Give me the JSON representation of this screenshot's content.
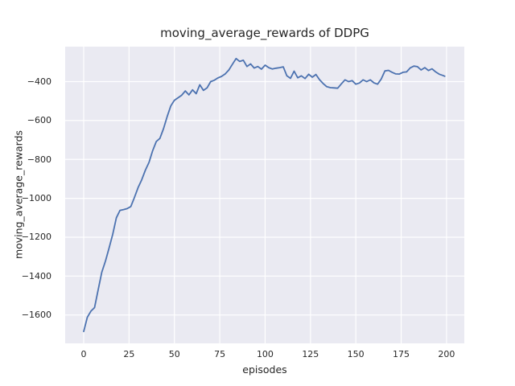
{
  "chart": {
    "title": "moving_average_rewards of DDPG",
    "xlabel": "episodes",
    "ylabel": "moving_average_rewards",
    "xlim": [
      -10.2,
      209.8
    ],
    "ylim": [
      -1746,
      -220
    ],
    "xticks": [
      0,
      25,
      50,
      75,
      100,
      125,
      150,
      175,
      200
    ],
    "xtick_labels": [
      "0",
      "25",
      "50",
      "75",
      "100",
      "125",
      "150",
      "175",
      "200"
    ],
    "yticks": [
      -400,
      -600,
      -800,
      -1000,
      -1200,
      -1400,
      -1600
    ],
    "ytick_labels": [
      "−400",
      "−600",
      "−800",
      "−1000",
      "−1200",
      "−1400",
      "−1600"
    ],
    "colors": {
      "figure_background": "#FFFFFF",
      "axes_background": "#EAEAF2",
      "grid": "#FFFFFF",
      "line": "#4C72B0",
      "text": "#262626"
    }
  },
  "chart_data": {
    "type": "line",
    "title": "moving_average_rewards of DDPG",
    "xlabel": "episodes",
    "ylabel": "moving_average_rewards",
    "xlim": [
      -10.2,
      209.8
    ],
    "ylim": [
      -1746,
      -220
    ],
    "grid": true,
    "legend": false,
    "series": [
      {
        "name": "moving_average_rewards",
        "color": "#4C72B0",
        "x": [
          0,
          2,
          4,
          6,
          8,
          10,
          12,
          14,
          16,
          18,
          20,
          22,
          24,
          26,
          28,
          30,
          32,
          34,
          36,
          38,
          40,
          42,
          44,
          46,
          48,
          50,
          52,
          54,
          56,
          58,
          60,
          62,
          64,
          66,
          68,
          70,
          72,
          74,
          76,
          78,
          80,
          82,
          84,
          86,
          88,
          90,
          92,
          94,
          96,
          98,
          100,
          102,
          104,
          106,
          108,
          110,
          112,
          114,
          116,
          118,
          120,
          122,
          124,
          126,
          128,
          130,
          132,
          134,
          136,
          138,
          140,
          142,
          144,
          146,
          148,
          150,
          152,
          154,
          156,
          158,
          160,
          162,
          164,
          166,
          168,
          170,
          172,
          174,
          176,
          178,
          180,
          182,
          184,
          186,
          188,
          190,
          192,
          194,
          196,
          198,
          199
        ],
        "y": [
          -1685,
          -1612,
          -1580,
          -1562,
          -1470,
          -1380,
          -1322,
          -1255,
          -1185,
          -1100,
          -1062,
          -1058,
          -1053,
          -1042,
          -995,
          -945,
          -905,
          -855,
          -815,
          -755,
          -708,
          -692,
          -642,
          -580,
          -525,
          -496,
          -483,
          -470,
          -448,
          -468,
          -442,
          -462,
          -416,
          -445,
          -432,
          -400,
          -393,
          -381,
          -373,
          -360,
          -340,
          -310,
          -281,
          -296,
          -290,
          -322,
          -309,
          -330,
          -322,
          -336,
          -315,
          -328,
          -335,
          -331,
          -328,
          -324,
          -370,
          -383,
          -346,
          -380,
          -370,
          -384,
          -362,
          -377,
          -363,
          -390,
          -410,
          -426,
          -431,
          -432,
          -434,
          -412,
          -391,
          -400,
          -395,
          -413,
          -407,
          -391,
          -400,
          -391,
          -406,
          -413,
          -387,
          -345,
          -342,
          -352,
          -360,
          -361,
          -352,
          -350,
          -329,
          -320,
          -323,
          -340,
          -328,
          -343,
          -334,
          -350,
          -362,
          -368,
          -372
        ]
      }
    ]
  }
}
